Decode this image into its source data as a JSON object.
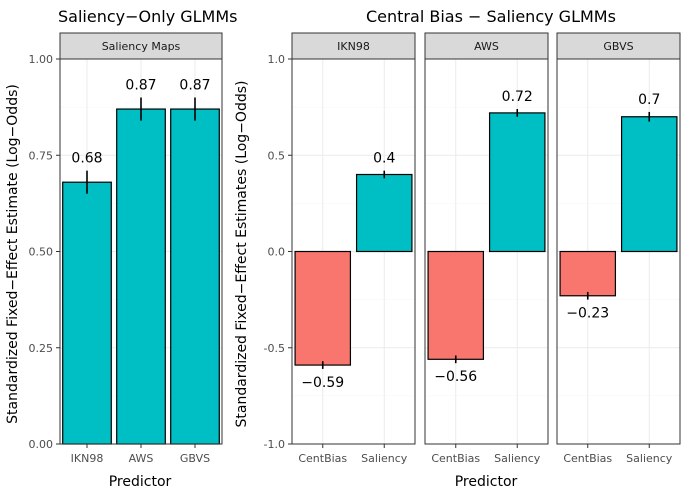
{
  "colors": {
    "centbias": "#F8766D",
    "saliency": "#00BFC4"
  },
  "left": {
    "title": "Saliency−Only GLMMs",
    "xlabel": "Predictor",
    "ylabel": "Standardized Fixed−Effect Estimate (Log−Odds)"
  },
  "right": {
    "title": "Central Bias − Saliency GLMMs",
    "xlabel": "Predictor",
    "ylabel": "Standardized Fixed−Effect Estimates (Log−Odds)"
  },
  "chart_data": [
    {
      "type": "bar",
      "title": "Saliency−Only GLMMs",
      "facet": "Saliency Maps",
      "categories": [
        "IKN98",
        "AWS",
        "GBVS"
      ],
      "values": [
        0.68,
        0.87,
        0.87
      ],
      "labels": [
        "0.68",
        "0.87",
        "0.87"
      ],
      "errors": [
        0.03,
        0.03,
        0.03
      ],
      "ylim": [
        0,
        1.0
      ],
      "yticks": [
        0.0,
        0.25,
        0.5,
        0.75,
        1.0
      ],
      "ytick_labels": [
        "0.00",
        "0.25",
        "0.50",
        "0.75",
        "1.00"
      ],
      "xlabel": "Predictor",
      "ylabel": "Standardized Fixed−Effect Estimate (Log−Odds)"
    },
    {
      "type": "bar",
      "title": "Central Bias − Saliency GLMMs",
      "categories": [
        "CentBias",
        "Saliency"
      ],
      "ylim": [
        -1.0,
        1.0
      ],
      "yticks": [
        -1.0,
        -0.5,
        0.0,
        0.5,
        1.0
      ],
      "ytick_labels": [
        "-1.0",
        "-0.5",
        "0.0",
        "0.5",
        "1.0"
      ],
      "xlabel": "Predictor",
      "ylabel": "Standardized Fixed−Effect Estimates (Log−Odds)",
      "facets": [
        {
          "name": "IKN98",
          "values": [
            -0.59,
            0.4
          ],
          "labels": [
            "−0.59",
            "0.4"
          ],
          "errors": [
            0.02,
            0.02
          ]
        },
        {
          "name": "AWS",
          "values": [
            -0.56,
            0.72
          ],
          "labels": [
            "−0.56",
            "0.72"
          ],
          "errors": [
            0.02,
            0.02
          ]
        },
        {
          "name": "GBVS",
          "values": [
            -0.23,
            0.7
          ],
          "labels": [
            "−0.23",
            "0.7"
          ],
          "errors": [
            0.02,
            0.025
          ]
        }
      ]
    }
  ]
}
